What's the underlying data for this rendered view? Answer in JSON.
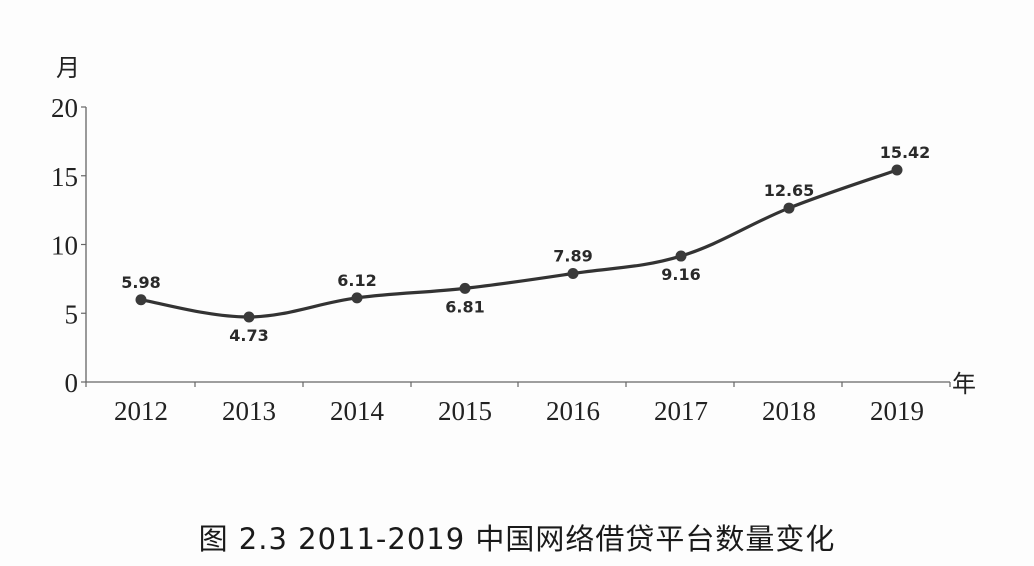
{
  "chart_data": {
    "type": "line",
    "title": "图 2.3 2011-2019 中国网络借贷平台数量变化",
    "xlabel": "年",
    "ylabel": "月",
    "categories": [
      "2012",
      "2013",
      "2014",
      "2015",
      "2016",
      "2017",
      "2018",
      "2019"
    ],
    "values": [
      5.98,
      4.73,
      6.12,
      6.81,
      7.89,
      9.16,
      12.65,
      15.42
    ],
    "data_labels": [
      "5.98",
      "4.73",
      "6.12",
      "6.81",
      "7.89",
      "9.16",
      "12.65",
      "15.42"
    ],
    "label_positions": [
      "above",
      "below",
      "above",
      "below",
      "above",
      "below",
      "above",
      "above"
    ],
    "ylim": [
      0,
      20
    ],
    "yticks": [
      "0",
      "5",
      "10",
      "15",
      "20"
    ],
    "grid": false,
    "legend": null,
    "line_color": "#333333"
  },
  "caption": "图 2.3 2011-2019 中国网络借贷平台数量变化"
}
